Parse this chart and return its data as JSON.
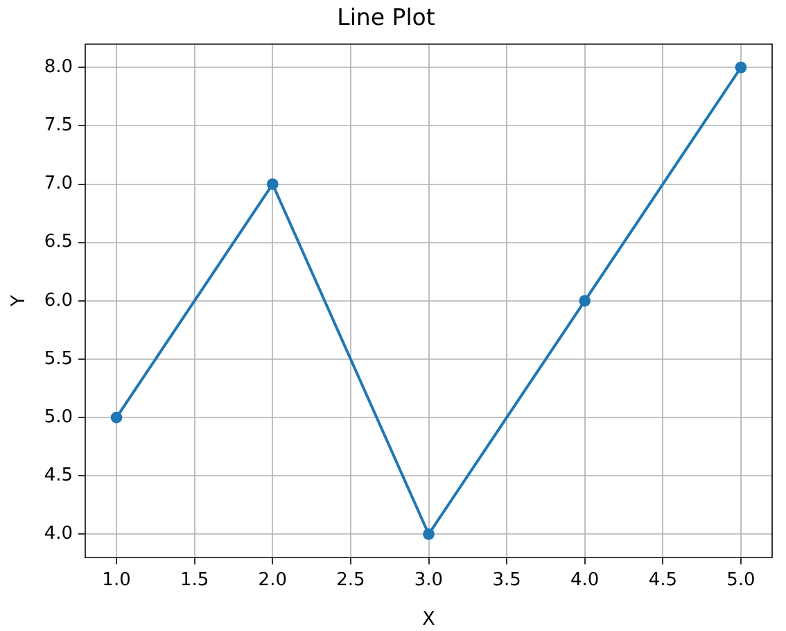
{
  "chart_data": {
    "type": "line",
    "title": "Line Plot",
    "xlabel": "X",
    "ylabel": "Y",
    "x": [
      1,
      2,
      3,
      4,
      5
    ],
    "series": [
      {
        "color": "#1f77b4",
        "values": [
          5,
          7,
          4,
          6,
          8
        ]
      }
    ],
    "xlim": [
      0.8,
      5.2
    ],
    "ylim": [
      3.8,
      8.2
    ],
    "xticks": [
      {
        "value": 1,
        "label": "1.0"
      },
      {
        "value": 1.5,
        "label": "1.5"
      },
      {
        "value": 2,
        "label": "2.0"
      },
      {
        "value": 2.5,
        "label": "2.5"
      },
      {
        "value": 3,
        "label": "3.0"
      },
      {
        "value": 3.5,
        "label": "3.5"
      },
      {
        "value": 4,
        "label": "4.0"
      },
      {
        "value": 4.5,
        "label": "4.5"
      },
      {
        "value": 5,
        "label": "5.0"
      }
    ],
    "yticks": [
      {
        "value": 4,
        "label": "4.0"
      },
      {
        "value": 4.5,
        "label": "4.5"
      },
      {
        "value": 5,
        "label": "5.0"
      },
      {
        "value": 5.5,
        "label": "5.5"
      },
      {
        "value": 6,
        "label": "6.0"
      },
      {
        "value": 6.5,
        "label": "6.5"
      },
      {
        "value": 7,
        "label": "7.0"
      },
      {
        "value": 7.5,
        "label": "7.5"
      },
      {
        "value": 8,
        "label": "8.0"
      }
    ],
    "grid": true,
    "marker": "circle",
    "line_style": "solid"
  }
}
